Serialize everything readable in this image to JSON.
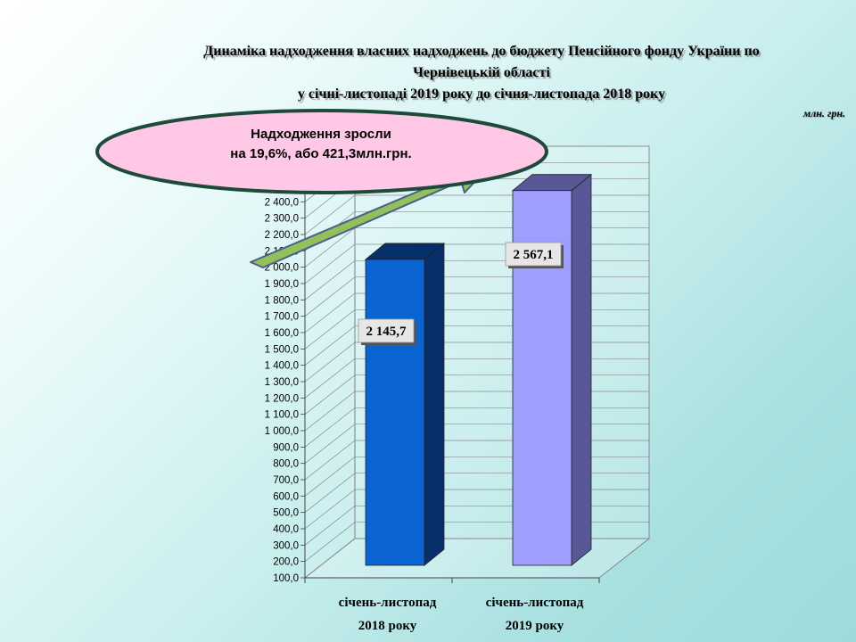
{
  "title_lines": [
    "Динаміка надходження власних надходжень до бюджету Пенсійного фонду України по",
    "Чернівецькій області",
    "у січні-листопаді 2019 року до січня-листопада 2018 року"
  ],
  "unit": "млн. грн.",
  "callout": {
    "line1": "Надходження зросли",
    "line2": "на 19,6%, або 421,3млн.грн."
  },
  "colors": {
    "bar_2018_front": "#0a64d2",
    "bar_2018_side": "#07306a",
    "bar_2019_front": "#9e9eff",
    "bar_2019_side": "#585896",
    "arrow": "#92c05a",
    "callout_fill": "#ffc8e6"
  },
  "chart_data": {
    "type": "bar",
    "categories": [
      [
        "січень-листопад",
        "2018 року"
      ],
      [
        "січень-листопад",
        "2019 року"
      ]
    ],
    "values": [
      2145.7,
      2567.1
    ],
    "value_labels": [
      "2 145,7",
      "2 567,1"
    ],
    "ylim": [
      100,
      2500
    ],
    "y_ticks": [
      100,
      200,
      300,
      400,
      500,
      600,
      700,
      800,
      900,
      1000,
      1100,
      1200,
      1300,
      1400,
      1500,
      1600,
      1700,
      1800,
      1900,
      2000,
      2100,
      2200,
      2300,
      2400
    ],
    "y_tick_labels": [
      "100,0",
      "200,0",
      "300,0",
      "400,0",
      "500,0",
      "600,0",
      "700,0",
      "800,0",
      "900,0",
      "1 000,0",
      "1 100,0",
      "1 200,0",
      "1 300,0",
      "1 400,0",
      "1 500,0",
      "1 600,0",
      "1 700,0",
      "1 800,0",
      "1 900,0",
      "2 000,0",
      "2 100,0",
      "2 200,0",
      "2 300,0",
      "2 400,0"
    ],
    "grid": true
  }
}
